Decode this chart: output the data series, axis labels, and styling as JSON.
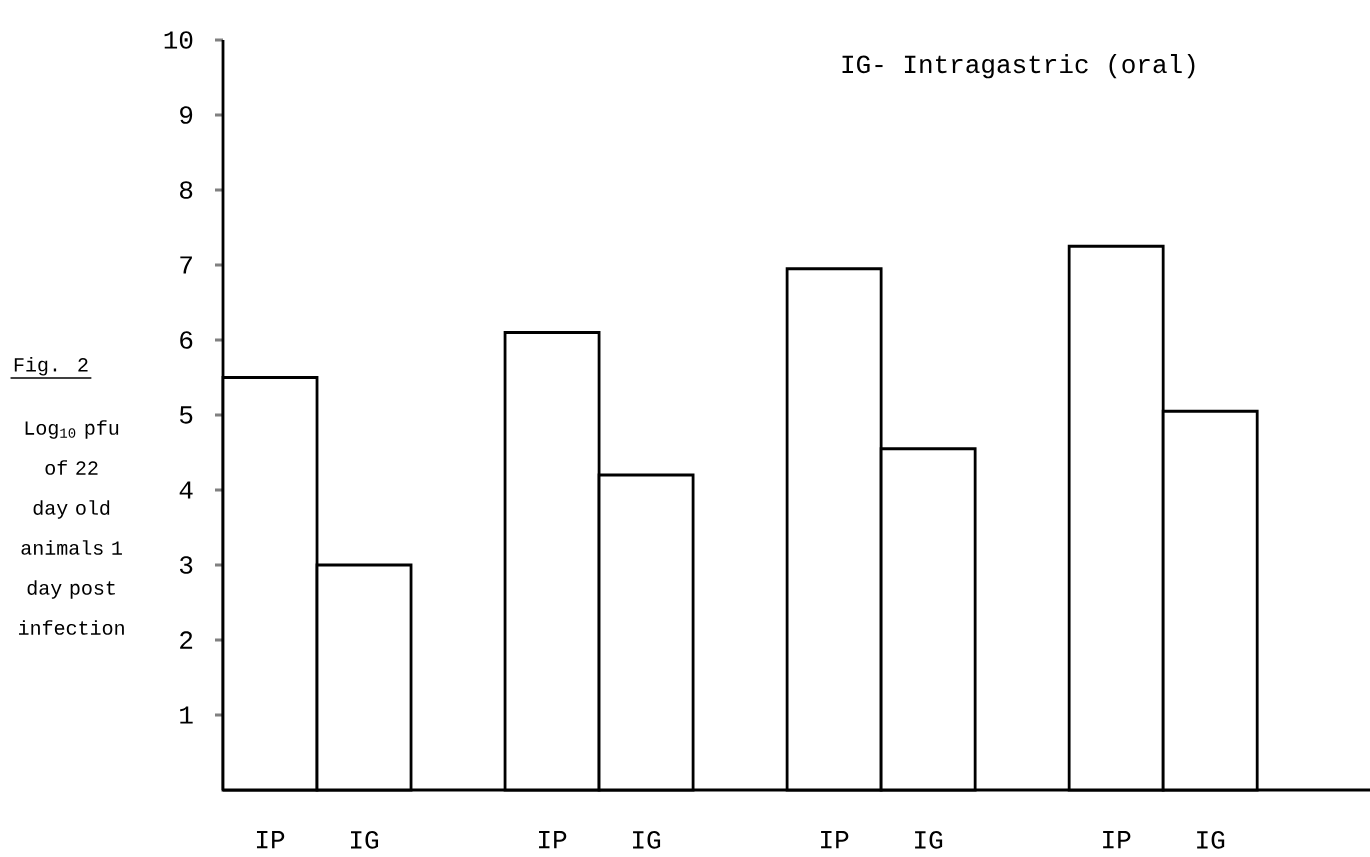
{
  "chart_data": {
    "type": "bar",
    "title": "Fig. 2",
    "ylabel": "Log$_{10}$ pfu of 22 day old animals 1 day post infection",
    "annotations": [
      "IG- Intragastric (oral)"
    ],
    "categories": [
      "IP",
      "IG",
      "IP",
      "IG",
      "IP",
      "IG",
      "IP",
      "IG"
    ],
    "values": [
      5.5,
      3.0,
      6.1,
      4.2,
      6.95,
      4.55,
      7.25,
      5.05
    ],
    "color": "#000000",
    "ylim": [
      0,
      10
    ],
    "yticks": [
      1,
      2,
      3,
      4,
      5,
      6,
      7,
      8,
      9,
      10
    ]
  }
}
